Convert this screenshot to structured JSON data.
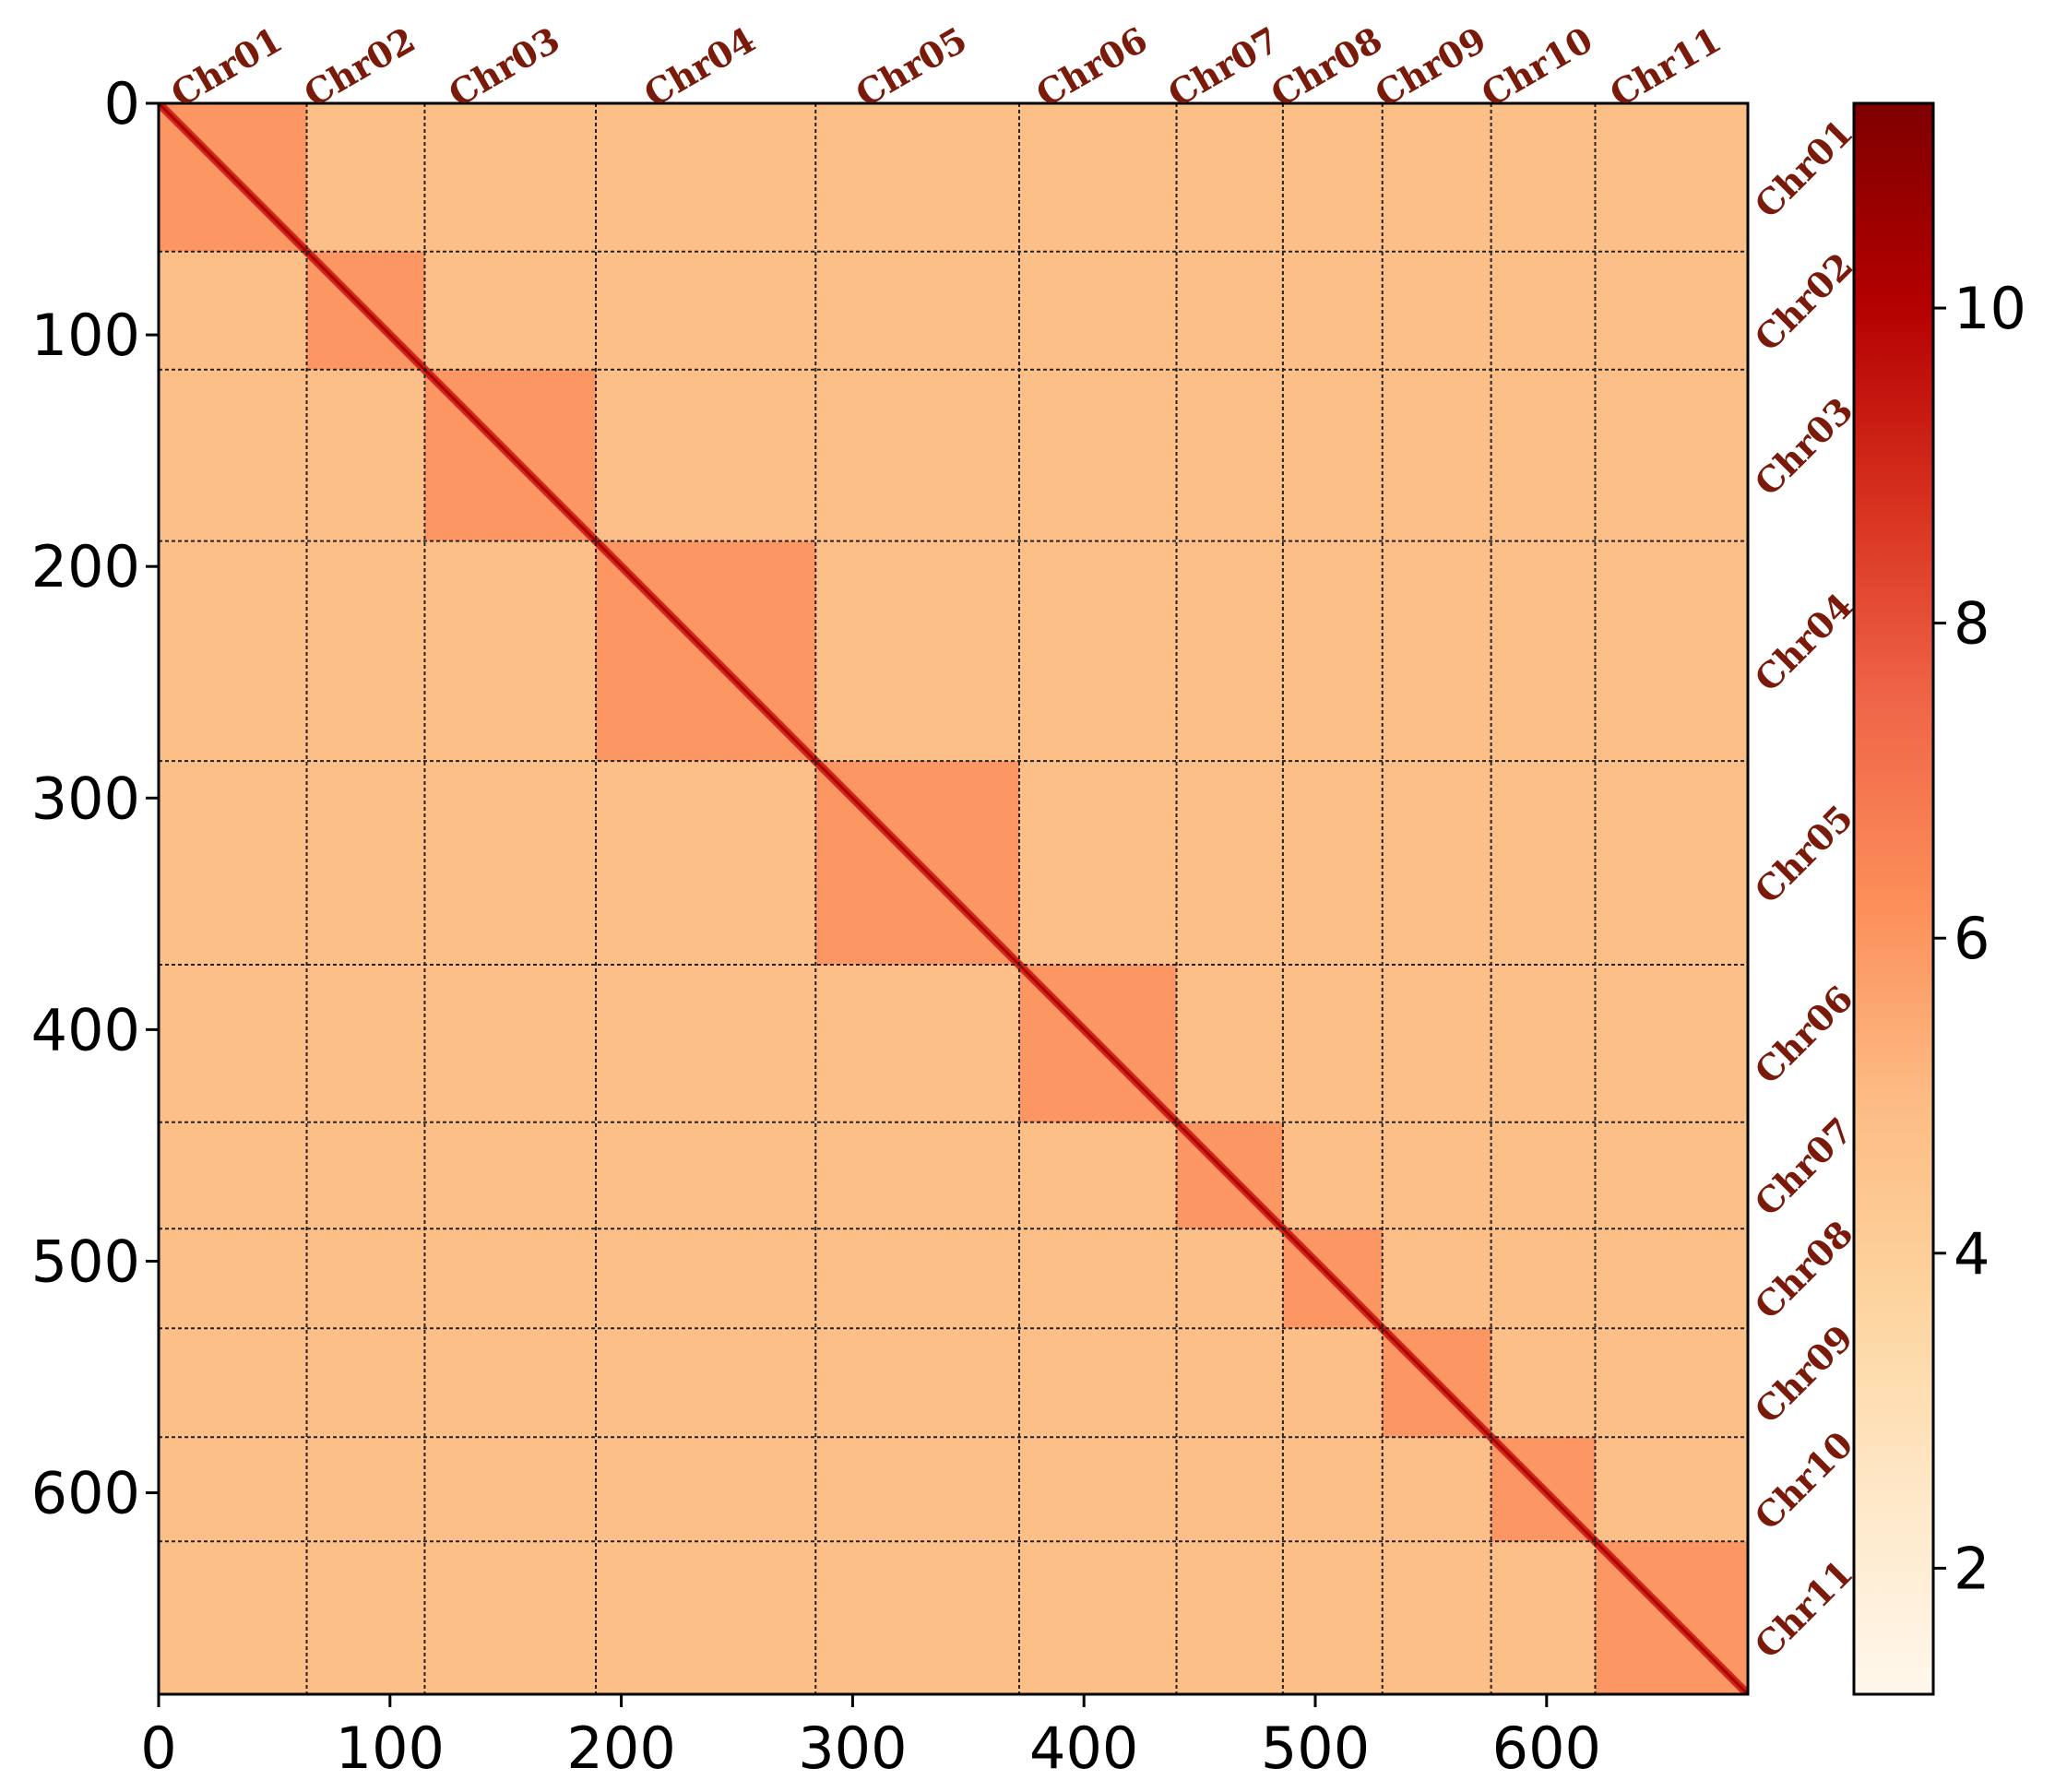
{
  "chart_data": {
    "type": "heatmap",
    "title": "",
    "xlabel": "",
    "ylabel": "",
    "xlim": [
      0,
      687
    ],
    "ylim": [
      687,
      0
    ],
    "xticks": [
      0,
      100,
      200,
      300,
      400,
      500,
      600
    ],
    "xtick_labels": [
      "0",
      "100",
      "200",
      "300",
      "400",
      "500",
      "600"
    ],
    "yticks": [
      0,
      100,
      200,
      300,
      400,
      500,
      600
    ],
    "ytick_labels": [
      "0",
      "100",
      "200",
      "300",
      "400",
      "500",
      "600"
    ],
    "chromosomes": [
      {
        "name": "Chr01",
        "start": 0,
        "end": 64
      },
      {
        "name": "Chr02",
        "start": 64,
        "end": 115
      },
      {
        "name": "Chr03",
        "start": 115,
        "end": 189
      },
      {
        "name": "Chr04",
        "start": 189,
        "end": 284
      },
      {
        "name": "Chr05",
        "start": 284,
        "end": 372
      },
      {
        "name": "Chr06",
        "start": 372,
        "end": 440
      },
      {
        "name": "Chr07",
        "start": 440,
        "end": 486
      },
      {
        "name": "Chr08",
        "start": 486,
        "end": 529
      },
      {
        "name": "Chr09",
        "start": 529,
        "end": 576
      },
      {
        "name": "Chr10",
        "start": 576,
        "end": 621
      },
      {
        "name": "Chr11",
        "start": 621,
        "end": 687
      }
    ],
    "values_description_levels": {
      "background": 4.8,
      "intra_chromosome": 6.0,
      "diagonal": 9.0
    },
    "colorbar": {
      "min": 1.2,
      "max": 11.3,
      "ticks": [
        2,
        4,
        6,
        8,
        10
      ],
      "tick_labels": [
        "2",
        "4",
        "6",
        "8",
        "10"
      ],
      "colormap": "OrRd",
      "color_stops": [
        "#fff7ec",
        "#fee8c8",
        "#fdd49e",
        "#fdbb84",
        "#fc8d59",
        "#ef6548",
        "#d7301f",
        "#b30000",
        "#7f0000"
      ]
    },
    "grid": "dashed chromosome boundaries",
    "legend": "colorbar-right"
  }
}
